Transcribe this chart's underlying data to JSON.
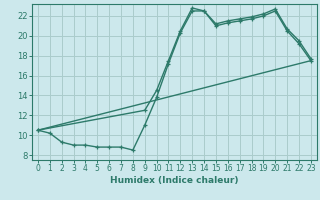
{
  "xlabel": "Humidex (Indice chaleur)",
  "bg_color": "#cce8ec",
  "grid_color": "#aacccc",
  "line_color": "#2d7a6a",
  "xlim": [
    -0.5,
    23.5
  ],
  "ylim": [
    7.5,
    23.2
  ],
  "xticks": [
    0,
    1,
    2,
    3,
    4,
    5,
    6,
    7,
    8,
    9,
    10,
    11,
    12,
    13,
    14,
    15,
    16,
    17,
    18,
    19,
    20,
    21,
    22,
    23
  ],
  "yticks": [
    8,
    10,
    12,
    14,
    16,
    18,
    20,
    22
  ],
  "series1_x": [
    0,
    1,
    2,
    3,
    4,
    5,
    6,
    7,
    8,
    9,
    10,
    11,
    12,
    13,
    14,
    15,
    16,
    17,
    18,
    19,
    20,
    21,
    22,
    23
  ],
  "series1_y": [
    10.5,
    10.2,
    9.3,
    9.0,
    9.0,
    8.8,
    8.8,
    8.8,
    8.5,
    11.0,
    13.8,
    17.2,
    20.3,
    22.5,
    22.5,
    21.0,
    21.3,
    21.5,
    21.7,
    22.0,
    22.5,
    20.5,
    19.2,
    17.5
  ],
  "series2_x": [
    0,
    9,
    10,
    11,
    12,
    13,
    14,
    15,
    16,
    17,
    18,
    19,
    20,
    21,
    22,
    23
  ],
  "series2_y": [
    10.5,
    12.5,
    14.5,
    17.5,
    20.5,
    22.8,
    22.5,
    21.2,
    21.5,
    21.7,
    21.9,
    22.2,
    22.7,
    20.7,
    19.5,
    17.7
  ],
  "series3_x": [
    0,
    23
  ],
  "series3_y": [
    10.5,
    17.5
  ],
  "xlabel_fontsize": 6.5,
  "tick_fontsize": 5.5
}
